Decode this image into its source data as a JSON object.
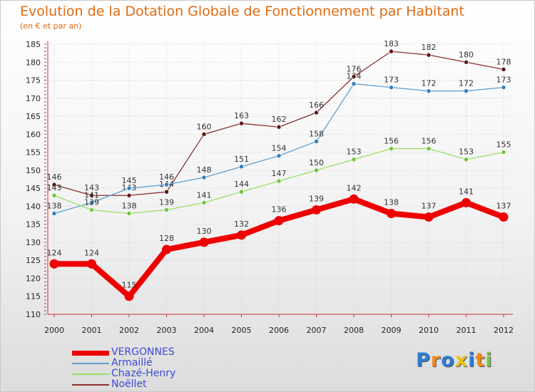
{
  "page": {
    "title": "Evolution de la Dotation Globale de Fonctionnement par Habitant",
    "subtitle": "(en € et par an)"
  },
  "logo": {
    "text": "Proxiti"
  },
  "chart_data": {
    "type": "line",
    "title": "Evolution de la Dotation Globale de Fonctionnement par Habitant",
    "subtitle": "(en € et par an)",
    "xlabel": "",
    "ylabel": "",
    "ylim": [
      110,
      185
    ],
    "yticks": [
      110,
      115,
      120,
      125,
      130,
      135,
      140,
      145,
      150,
      155,
      160,
      165,
      170,
      175,
      180,
      185
    ],
    "grid": true,
    "legend_position": "bottom-left",
    "x": [
      "2000",
      "2001",
      "2002",
      "2003",
      "2004",
      "2005",
      "2006",
      "2007",
      "2008",
      "2009",
      "2010",
      "2011",
      "2012"
    ],
    "series": [
      {
        "name": "Noëllet",
        "color": "#8b2e2e",
        "marker_color": "#5e1515",
        "bold": false,
        "values": [
          146,
          143,
          143,
          144,
          160,
          163,
          162,
          166,
          176,
          183,
          182,
          180,
          178
        ],
        "labels": [
          "146",
          "143",
          "143",
          "144",
          "160",
          "163",
          "162",
          "166",
          "176",
          "183",
          "182",
          "180",
          "178"
        ]
      },
      {
        "name": "Armaillé",
        "color": "#5b9fd4",
        "marker_color": "#2f7fbf",
        "bold": false,
        "values": [
          138,
          141,
          145,
          146,
          148,
          151,
          154,
          158,
          174,
          173,
          172,
          172,
          173
        ],
        "labels": [
          "138",
          "141",
          "145",
          "146",
          "148",
          "151",
          "154",
          "158",
          "174",
          "173",
          "172",
          "172",
          "173"
        ]
      },
      {
        "name": "Chazé-Henry",
        "color": "#99e066",
        "marker_color": "#73c23d",
        "bold": false,
        "values": [
          143,
          139,
          138,
          139,
          141,
          144,
          147,
          150,
          153,
          156,
          156,
          153,
          155
        ],
        "labels": [
          "143",
          "139",
          "138",
          "139",
          "141",
          "144",
          "147",
          "150",
          "153",
          "156",
          "156",
          "153",
          "155"
        ]
      },
      {
        "name": "VERGONNES",
        "color": "#ee0000",
        "marker_color": "#ee0000",
        "bold": true,
        "values": [
          124,
          124,
          115,
          128,
          130,
          132,
          136,
          139,
          142,
          138,
          137,
          141,
          137
        ],
        "labels": [
          "124",
          "124",
          "115",
          "128",
          "130",
          "132",
          "136",
          "139",
          "142",
          "138",
          "137",
          "141",
          "137"
        ]
      }
    ],
    "legend": [
      "VERGONNES",
      "Armaillé",
      "Chazé-Henry",
      "Noëllet"
    ]
  }
}
